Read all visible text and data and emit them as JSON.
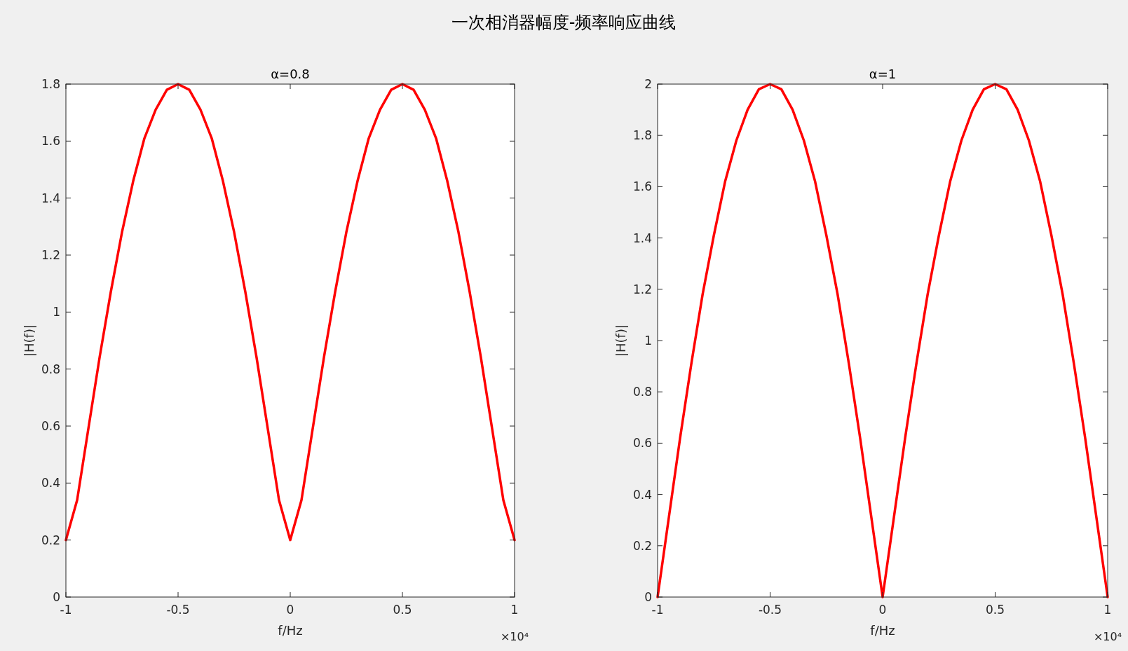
{
  "chart_data": [
    {
      "type": "other",
      "title": "一次相消器幅度-频率响应曲线"
    },
    {
      "type": "line",
      "title": "α=0.8",
      "xlabel": "f/Hz",
      "ylabel": "|H(f)|",
      "annotations": [
        "×10⁴"
      ],
      "x": [
        -1,
        -0.95,
        -0.9,
        -0.85,
        -0.8,
        -0.75,
        -0.7,
        -0.65,
        -0.6,
        -0.55,
        -0.5,
        -0.45,
        -0.4,
        -0.35,
        -0.3,
        -0.25,
        -0.2,
        -0.15,
        -0.1,
        -0.05,
        0,
        0.05,
        0.1,
        0.15,
        0.2,
        0.25,
        0.3,
        0.35,
        0.4,
        0.45,
        0.5,
        0.55,
        0.6,
        0.65,
        0.7,
        0.75,
        0.8,
        0.85,
        0.9,
        0.95,
        1
      ],
      "series": [
        {
          "color": "#ff0000",
          "values": [
            0.2,
            0.34,
            0.59,
            0.84,
            1.07,
            1.28,
            1.46,
            1.61,
            1.71,
            1.78,
            1.8,
            1.78,
            1.71,
            1.61,
            1.46,
            1.28,
            1.07,
            0.84,
            0.59,
            0.34,
            0.2,
            0.34,
            0.59,
            0.84,
            1.07,
            1.28,
            1.46,
            1.61,
            1.71,
            1.78,
            1.8,
            1.78,
            1.71,
            1.61,
            1.46,
            1.28,
            1.07,
            0.84,
            0.59,
            0.34,
            0.2
          ]
        }
      ],
      "xlim": [
        -1,
        1
      ],
      "ylim": [
        0,
        1.8
      ],
      "xticks": [
        -1,
        -0.5,
        0,
        0.5,
        1
      ],
      "yticks": [
        0,
        0.2,
        0.4,
        0.6,
        0.8,
        1,
        1.2,
        1.4,
        1.6,
        1.8
      ],
      "grid": false
    },
    {
      "type": "line",
      "title": "α=1",
      "xlabel": "f/Hz",
      "ylabel": "|H(f)|",
      "annotations": [
        "×10⁴"
      ],
      "x": [
        -1,
        -0.95,
        -0.9,
        -0.85,
        -0.8,
        -0.75,
        -0.7,
        -0.65,
        -0.6,
        -0.55,
        -0.5,
        -0.45,
        -0.4,
        -0.35,
        -0.3,
        -0.25,
        -0.2,
        -0.15,
        -0.1,
        -0.05,
        0,
        0.05,
        0.1,
        0.15,
        0.2,
        0.25,
        0.3,
        0.35,
        0.4,
        0.45,
        0.5,
        0.55,
        0.6,
        0.65,
        0.7,
        0.75,
        0.8,
        0.85,
        0.9,
        0.95,
        1
      ],
      "series": [
        {
          "color": "#ff0000",
          "values": [
            0,
            0.31,
            0.62,
            0.91,
            1.18,
            1.41,
            1.62,
            1.78,
            1.9,
            1.98,
            2,
            1.98,
            1.9,
            1.78,
            1.62,
            1.41,
            1.18,
            0.91,
            0.62,
            0.31,
            0,
            0.31,
            0.62,
            0.91,
            1.18,
            1.41,
            1.62,
            1.78,
            1.9,
            1.98,
            2,
            1.98,
            1.9,
            1.78,
            1.62,
            1.41,
            1.18,
            0.91,
            0.62,
            0.31,
            0
          ]
        }
      ],
      "xlim": [
        -1,
        1
      ],
      "ylim": [
        0,
        2
      ],
      "xticks": [
        -1,
        -0.5,
        0,
        0.5,
        1
      ],
      "yticks": [
        0,
        0.2,
        0.4,
        0.6,
        0.8,
        1,
        1.2,
        1.4,
        1.6,
        1.8,
        2
      ],
      "grid": false
    }
  ]
}
